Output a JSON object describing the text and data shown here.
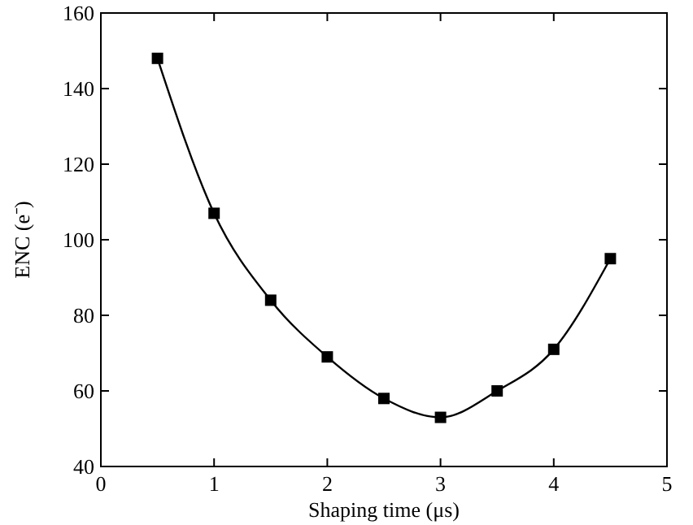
{
  "chart_data": {
    "type": "line",
    "xlabel": "Shaping time (μs)",
    "ylabel": "ENC (e⁻)",
    "x": [
      0.5,
      1,
      1.5,
      2,
      2.5,
      3,
      3.5,
      4,
      4.5
    ],
    "series": [
      {
        "color": "#000000",
        "values": [
          148,
          107,
          84,
          69,
          58,
          53,
          60,
          71,
          95
        ]
      }
    ],
    "xlim": [
      0,
      5
    ],
    "xticks": [
      0,
      1,
      2,
      3,
      4,
      5
    ],
    "ylim": [
      40,
      160
    ],
    "yticks": [
      40,
      60,
      80,
      100,
      120,
      140,
      160
    ],
    "marker": "square",
    "line_style": "solid"
  }
}
